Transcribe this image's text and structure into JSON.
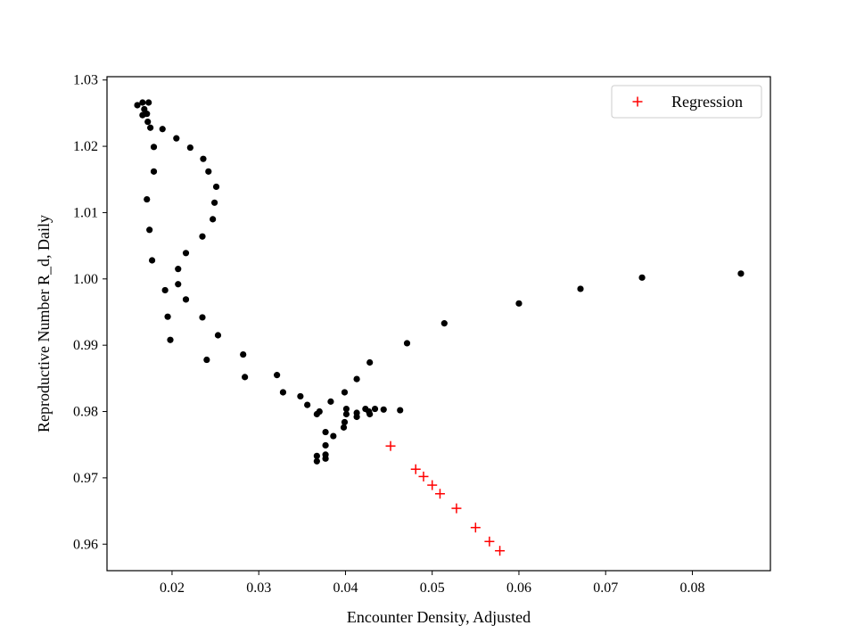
{
  "chart_data": {
    "type": "scatter",
    "xlabel": "Encounter Density, Adjusted",
    "ylabel": "Reproductive Number R_d, Daily",
    "xlim": [
      0.0125,
      0.089
    ],
    "ylim": [
      0.956,
      1.0305
    ],
    "xticks": [
      0.02,
      0.03,
      0.04,
      0.05,
      0.06,
      0.07,
      0.08
    ],
    "xtick_labels": [
      "0.02",
      "0.03",
      "0.04",
      "0.05",
      "0.06",
      "0.07",
      "0.08"
    ],
    "yticks": [
      0.96,
      0.97,
      0.98,
      0.99,
      1.0,
      1.01,
      1.02,
      1.03
    ],
    "ytick_labels": [
      "0.96",
      "0.97",
      "0.98",
      "0.99",
      "1.00",
      "1.01",
      "1.02",
      "1.03"
    ],
    "grid": false,
    "legend": {
      "position": "top-right",
      "entries": [
        "Regression"
      ]
    },
    "series": [
      {
        "marker": "circle",
        "color": "#000000",
        "points": [
          [
            0.016,
            1.0262
          ],
          [
            0.0166,
            1.0266
          ],
          [
            0.0173,
            1.0266
          ],
          [
            0.0168,
            1.0256
          ],
          [
            0.0171,
            1.0249
          ],
          [
            0.0166,
            1.0247
          ],
          [
            0.0172,
            1.0237
          ],
          [
            0.0175,
            1.0228
          ],
          [
            0.0189,
            1.0226
          ],
          [
            0.0205,
            1.0212
          ],
          [
            0.0179,
            1.0199
          ],
          [
            0.0221,
            1.0198
          ],
          [
            0.0236,
            1.0181
          ],
          [
            0.0179,
            1.0162
          ],
          [
            0.0242,
            1.0162
          ],
          [
            0.0251,
            1.0139
          ],
          [
            0.0171,
            1.012
          ],
          [
            0.0249,
            1.0115
          ],
          [
            0.0247,
            1.009
          ],
          [
            0.0174,
            1.0074
          ],
          [
            0.0235,
            1.0064
          ],
          [
            0.0216,
            1.0039
          ],
          [
            0.0177,
            1.0028
          ],
          [
            0.0207,
            1.0015
          ],
          [
            0.0207,
            0.9992
          ],
          [
            0.0192,
            0.9983
          ],
          [
            0.0216,
            0.9969
          ],
          [
            0.0195,
            0.9943
          ],
          [
            0.0235,
            0.9942
          ],
          [
            0.0253,
            0.9915
          ],
          [
            0.0198,
            0.9908
          ],
          [
            0.0282,
            0.9886
          ],
          [
            0.024,
            0.9878
          ],
          [
            0.0284,
            0.9852
          ],
          [
            0.0321,
            0.9855
          ],
          [
            0.0328,
            0.9829
          ],
          [
            0.0348,
            0.9823
          ],
          [
            0.0356,
            0.981
          ],
          [
            0.037,
            0.98
          ],
          [
            0.0367,
            0.9796
          ],
          [
            0.0383,
            0.9815
          ],
          [
            0.0399,
            0.9829
          ],
          [
            0.0401,
            0.9804
          ],
          [
            0.0401,
            0.9796
          ],
          [
            0.0399,
            0.9784
          ],
          [
            0.0398,
            0.9776
          ],
          [
            0.0377,
            0.9769
          ],
          [
            0.0386,
            0.9763
          ],
          [
            0.0377,
            0.9749
          ],
          [
            0.0377,
            0.9735
          ],
          [
            0.0377,
            0.9729
          ],
          [
            0.0367,
            0.9733
          ],
          [
            0.0367,
            0.9725
          ],
          [
            0.0413,
            0.9798
          ],
          [
            0.0413,
            0.9792
          ],
          [
            0.0423,
            0.9804
          ],
          [
            0.0427,
            0.98
          ],
          [
            0.0428,
            0.9796
          ],
          [
            0.0434,
            0.9804
          ],
          [
            0.0444,
            0.9803
          ],
          [
            0.0463,
            0.9802
          ],
          [
            0.0413,
            0.9849
          ],
          [
            0.0428,
            0.9874
          ],
          [
            0.0471,
            0.9903
          ],
          [
            0.0514,
            0.9933
          ],
          [
            0.06,
            0.9963
          ],
          [
            0.0671,
            0.9985
          ],
          [
            0.0742,
            1.0002
          ],
          [
            0.0856,
            1.0008
          ]
        ]
      },
      {
        "name": "Regression",
        "marker": "plus",
        "color": "#ff0000",
        "points": [
          [
            0.0452,
            0.9748
          ],
          [
            0.0481,
            0.9713
          ],
          [
            0.049,
            0.9702
          ],
          [
            0.05,
            0.9689
          ],
          [
            0.0509,
            0.9676
          ],
          [
            0.0528,
            0.9654
          ],
          [
            0.055,
            0.9625
          ],
          [
            0.0566,
            0.9604
          ],
          [
            0.0578,
            0.959
          ]
        ]
      }
    ]
  }
}
